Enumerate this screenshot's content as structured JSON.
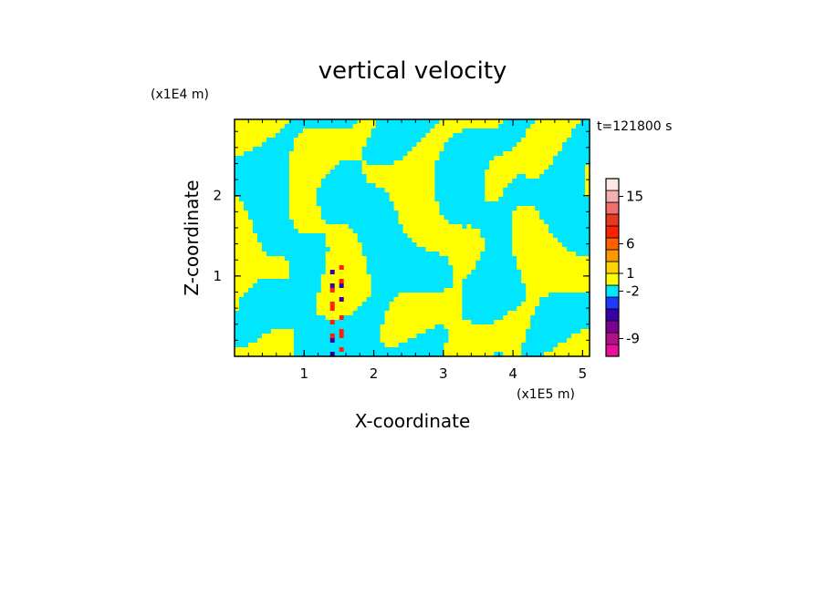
{
  "chart_data": {
    "type": "heatmap",
    "title": "vertical velocity",
    "xlabel": "X-coordinate",
    "ylabel": "Z-coordinate",
    "x_scale_label": "(x1E5 m)",
    "y_scale_label": "(x1E4 m)",
    "time_label": "t=121800 s",
    "xlim": [
      0,
      5.1
    ],
    "ylim": [
      0,
      2.95
    ],
    "x_ticks": [
      1,
      2,
      3,
      4,
      5
    ],
    "y_ticks": [
      1,
      2
    ],
    "colorbar": {
      "levels": [
        {
          "color": "#e8109c"
        },
        {
          "color": "#b0108c"
        },
        {
          "color": "#7a0096"
        },
        {
          "color": "#3a00a8"
        },
        {
          "color": "#1e3cff"
        },
        {
          "color": "#00e6ff"
        },
        {
          "color": "#ffff00"
        },
        {
          "color": "#ffd400"
        },
        {
          "color": "#ff9800"
        },
        {
          "color": "#ff6000"
        },
        {
          "color": "#ff2000"
        },
        {
          "color": "#e83820"
        },
        {
          "color": "#f07070"
        },
        {
          "color": "#f4b0b0"
        },
        {
          "color": "#fce8e4"
        }
      ],
      "tick_labels": [
        {
          "label": "-9",
          "level": 1
        },
        {
          "label": "-2",
          "level": 5
        },
        {
          "label": "1",
          "level": 6.5
        },
        {
          "label": "6",
          "level": 9
        },
        {
          "label": "15",
          "level": 13
        }
      ]
    },
    "field_colors": {
      "positive": "#ffff00",
      "negative": "#00e6ff",
      "strong_positive": "#ff2000",
      "strong_negative": "#3a00a8"
    }
  }
}
